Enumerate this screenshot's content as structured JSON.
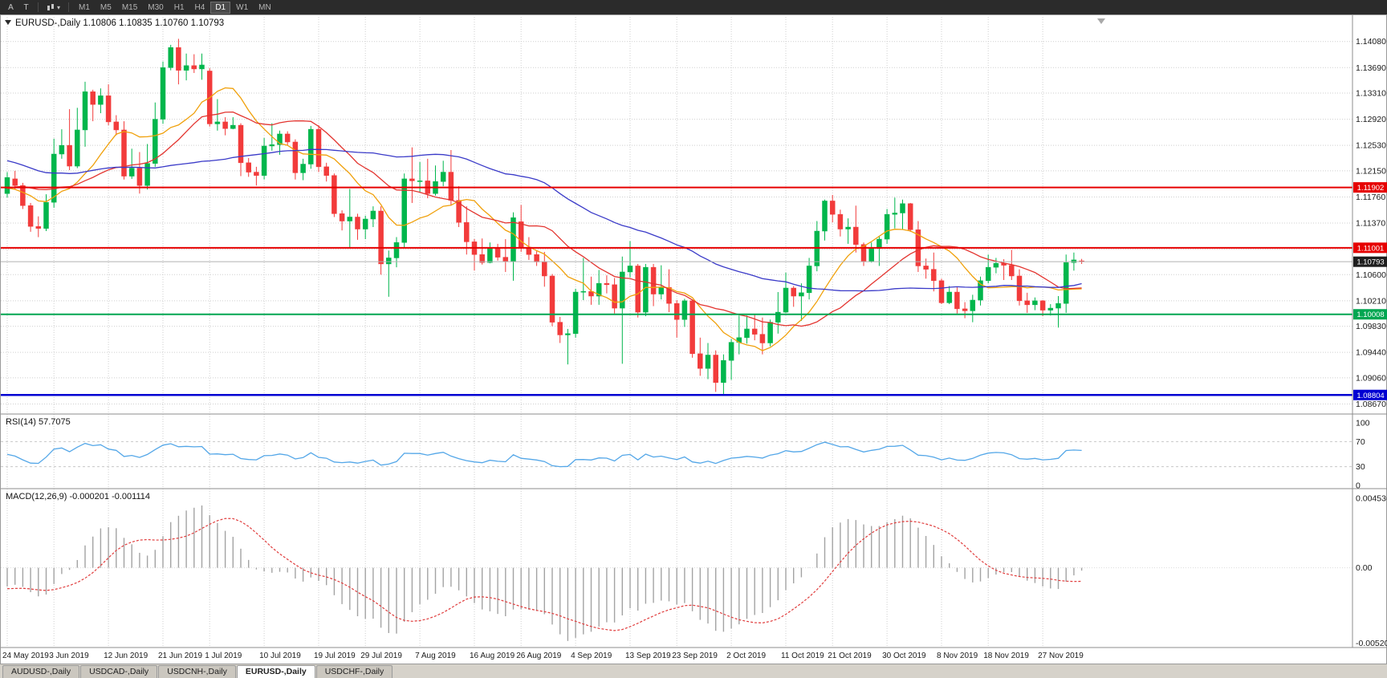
{
  "toolbar": {
    "left_buttons": [
      {
        "label": "A"
      },
      {
        "label": "T"
      }
    ],
    "chart_type_caret": "▾",
    "timeframes": [
      "M1",
      "M5",
      "M15",
      "M30",
      "H1",
      "H4",
      "D1",
      "W1",
      "MN"
    ],
    "active_timeframe": "D1"
  },
  "colors": {
    "background": "#FFFFFF",
    "grid": "#CFCFCF",
    "candle_up": "#00B64C",
    "candle_down": "#F23B3B",
    "resistance_red": "#E60000",
    "support_green": "#00A651",
    "support_blue": "#0000D2",
    "macd_histogram": "#A3A3A3",
    "macd_signal": "#E03C3C"
  },
  "chart_data": {
    "type": "candlestick",
    "title": "EURUSD-,Daily",
    "quote": "1.10806 1.10835 1.10760 1.10793",
    "y_ticks": [
      "1.14080",
      "1.13690",
      "1.13310",
      "1.12920",
      "1.12530",
      "1.12150",
      "1.11760",
      "1.11370",
      "1.10980",
      "1.10600",
      "1.10210",
      "1.09830",
      "1.09440",
      "1.09060",
      "1.08670"
    ],
    "x_axis": [
      {
        "label": "24 May 2019",
        "index": 0
      },
      {
        "label": "3 Jun 2019",
        "index": 6
      },
      {
        "label": "12 Jun 2019",
        "index": 13
      },
      {
        "label": "21 Jun 2019",
        "index": 20
      },
      {
        "label": "1 Jul 2019",
        "index": 26
      },
      {
        "label": "10 Jul 2019",
        "index": 33
      },
      {
        "label": "19 Jul 2019",
        "index": 40
      },
      {
        "label": "29 Jul 2019",
        "index": 46
      },
      {
        "label": "7 Aug 2019",
        "index": 53
      },
      {
        "label": "16 Aug 2019",
        "index": 60
      },
      {
        "label": "26 Aug 2019",
        "index": 66
      },
      {
        "label": "4 Sep 2019",
        "index": 73
      },
      {
        "label": "13 Sep 2019",
        "index": 80
      },
      {
        "label": "23 Sep 2019",
        "index": 86
      },
      {
        "label": "2 Oct 2019",
        "index": 93
      },
      {
        "label": "11 Oct 2019",
        "index": 100
      },
      {
        "label": "21 Oct 2019",
        "index": 106
      },
      {
        "label": "30 Oct 2019",
        "index": 113
      },
      {
        "label": "8 Nov 2019",
        "index": 120
      },
      {
        "label": "18 Nov 2019",
        "index": 126
      },
      {
        "label": "27 Nov 2019",
        "index": 133
      }
    ],
    "preroll_closes": [
      1.1325,
      1.1336,
      1.1354,
      1.1343,
      1.1339,
      1.1305,
      1.1266,
      1.1254,
      1.1262,
      1.1246,
      1.122,
      1.1213,
      1.1224,
      1.1211,
      1.1226,
      1.1223,
      1.1194,
      1.1216,
      1.1253,
      1.1302,
      1.1285,
      1.13,
      1.1291,
      1.1306,
      1.1296,
      1.1279,
      1.1245,
      1.1232,
      1.1211,
      1.1155,
      1.1152,
      1.1138,
      1.1145,
      1.1177,
      1.1176,
      1.1175,
      1.1218,
      1.1198,
      1.1211,
      1.1204,
      1.1224,
      1.1216,
      1.1207,
      1.1184,
      1.1205,
      1.1179,
      1.1171,
      1.1168,
      1.1181,
      1.118
    ],
    "candles": [
      [
        1.1181,
        1.1213,
        1.1175,
        1.1205
      ],
      [
        1.1203,
        1.1215,
        1.1187,
        1.1193
      ],
      [
        1.1193,
        1.1197,
        1.1158,
        1.1163
      ],
      [
        1.1163,
        1.1167,
        1.1124,
        1.1132
      ],
      [
        1.1132,
        1.1147,
        1.1116,
        1.1129
      ],
      [
        1.1129,
        1.118,
        1.1125,
        1.1168
      ],
      [
        1.1168,
        1.1263,
        1.116,
        1.124
      ],
      [
        1.124,
        1.1277,
        1.1233,
        1.1253
      ],
      [
        1.1253,
        1.1307,
        1.1216,
        1.1222
      ],
      [
        1.1222,
        1.1309,
        1.1219,
        1.1276
      ],
      [
        1.1276,
        1.1348,
        1.1251,
        1.1333
      ],
      [
        1.1333,
        1.1336,
        1.1289,
        1.1314
      ],
      [
        1.1314,
        1.1338,
        1.1301,
        1.1327
      ],
      [
        1.1327,
        1.1344,
        1.1283,
        1.1288
      ],
      [
        1.1288,
        1.1298,
        1.1268,
        1.1276
      ],
      [
        1.1276,
        1.1289,
        1.1202,
        1.1207
      ],
      [
        1.1207,
        1.1248,
        1.1203,
        1.1219
      ],
      [
        1.1219,
        1.1243,
        1.1181,
        1.1193
      ],
      [
        1.1193,
        1.1255,
        1.1187,
        1.1226
      ],
      [
        1.1226,
        1.1317,
        1.1221,
        1.1292
      ],
      [
        1.1292,
        1.1378,
        1.1285,
        1.1369
      ],
      [
        1.1369,
        1.1403,
        1.1365,
        1.1399
      ],
      [
        1.1399,
        1.1412,
        1.1344,
        1.1365
      ],
      [
        1.1365,
        1.139,
        1.135,
        1.1372
      ],
      [
        1.1372,
        1.1389,
        1.1361,
        1.1367
      ],
      [
        1.1367,
        1.139,
        1.1351,
        1.1373
      ],
      [
        1.1364,
        1.1368,
        1.1281,
        1.1285
      ],
      [
        1.1285,
        1.1322,
        1.1275,
        1.1288
      ],
      [
        1.1288,
        1.1295,
        1.1268,
        1.1278
      ],
      [
        1.1278,
        1.1295,
        1.1277,
        1.1283
      ],
      [
        1.1283,
        1.1286,
        1.1207,
        1.1227
      ],
      [
        1.1227,
        1.1234,
        1.1206,
        1.1213
      ],
      [
        1.1213,
        1.1221,
        1.1193,
        1.1208
      ],
      [
        1.1208,
        1.1264,
        1.1202,
        1.1252
      ],
      [
        1.1252,
        1.1286,
        1.1245,
        1.1254
      ],
      [
        1.1254,
        1.1275,
        1.1239,
        1.127
      ],
      [
        1.127,
        1.1274,
        1.1253,
        1.1258
      ],
      [
        1.1258,
        1.1262,
        1.1202,
        1.1212
      ],
      [
        1.1212,
        1.1233,
        1.1201,
        1.1225
      ],
      [
        1.1225,
        1.1282,
        1.1218,
        1.1277
      ],
      [
        1.1277,
        1.1283,
        1.1213,
        1.1221
      ],
      [
        1.1221,
        1.1227,
        1.1199,
        1.1208
      ],
      [
        1.1208,
        1.1211,
        1.1146,
        1.1151
      ],
      [
        1.1151,
        1.1156,
        1.1126,
        1.114
      ],
      [
        1.114,
        1.1188,
        1.1101,
        1.1146
      ],
      [
        1.1146,
        1.1151,
        1.1112,
        1.1128
      ],
      [
        1.1128,
        1.1148,
        1.1113,
        1.1143
      ],
      [
        1.1143,
        1.1162,
        1.1131,
        1.1155
      ],
      [
        1.1155,
        1.1162,
        1.106,
        1.1076
      ],
      [
        1.1076,
        1.1096,
        1.1027,
        1.1085
      ],
      [
        1.1085,
        1.1116,
        1.1071,
        1.1108
      ],
      [
        1.1108,
        1.1211,
        1.1101,
        1.1203
      ],
      [
        1.1203,
        1.125,
        1.1167,
        1.12
      ],
      [
        1.12,
        1.1228,
        1.1183,
        1.12
      ],
      [
        1.12,
        1.1233,
        1.1174,
        1.1181
      ],
      [
        1.1181,
        1.1223,
        1.1178,
        1.1199
      ],
      [
        1.1199,
        1.123,
        1.1192,
        1.1213
      ],
      [
        1.1213,
        1.1246,
        1.1163,
        1.1171
      ],
      [
        1.1171,
        1.1192,
        1.1131,
        1.1138
      ],
      [
        1.1138,
        1.1162,
        1.109,
        1.1109
      ],
      [
        1.1109,
        1.1113,
        1.1066,
        1.109
      ],
      [
        1.109,
        1.1114,
        1.1075,
        1.1078
      ],
      [
        1.1078,
        1.1108,
        1.1077,
        1.11
      ],
      [
        1.11,
        1.1106,
        1.1081,
        1.1086
      ],
      [
        1.1086,
        1.1113,
        1.1064,
        1.108
      ],
      [
        1.108,
        1.1153,
        1.1051,
        1.1145
      ],
      [
        1.1139,
        1.1164,
        1.1094,
        1.1101
      ],
      [
        1.1101,
        1.1116,
        1.1082,
        1.109
      ],
      [
        1.109,
        1.1095,
        1.1073,
        1.1079
      ],
      [
        1.1079,
        1.1094,
        1.1042,
        1.1058
      ],
      [
        1.1058,
        1.1061,
        1.0983,
        1.0989
      ],
      [
        1.0989,
        1.0997,
        1.0958,
        1.097
      ],
      [
        1.097,
        1.0979,
        1.0926,
        1.0972
      ],
      [
        1.0972,
        1.1039,
        1.0966,
        1.1034
      ],
      [
        1.1034,
        1.1085,
        1.1022,
        1.1035
      ],
      [
        1.1035,
        1.1057,
        1.1015,
        1.1028
      ],
      [
        1.1028,
        1.1067,
        1.1015,
        1.1047
      ],
      [
        1.1047,
        1.1059,
        1.1032,
        1.1045
      ],
      [
        1.1045,
        1.1055,
        1.1002,
        1.101
      ],
      [
        1.101,
        1.1087,
        1.0927,
        1.1064
      ],
      [
        1.1064,
        1.111,
        1.1056,
        1.1073
      ],
      [
        1.1073,
        1.1076,
        1.0996,
        1.1004
      ],
      [
        1.1004,
        1.1076,
        1.0998,
        1.1071
      ],
      [
        1.1071,
        1.1076,
        1.1013,
        1.1031
      ],
      [
        1.1031,
        1.1074,
        1.1023,
        1.1041
      ],
      [
        1.1041,
        1.1068,
        1.1004,
        1.1017
      ],
      [
        1.1017,
        1.1022,
        1.0966,
        1.0993
      ],
      [
        1.0993,
        1.1024,
        1.0982,
        1.1021
      ],
      [
        1.1021,
        1.1023,
        1.0936,
        1.0942
      ],
      [
        1.0942,
        1.0966,
        1.0909,
        1.092
      ],
      [
        1.092,
        1.0958,
        1.0904,
        1.094
      ],
      [
        1.094,
        1.0947,
        1.0885,
        1.0899
      ],
      [
        1.0899,
        1.0941,
        1.0879,
        1.0932
      ],
      [
        1.0932,
        1.0964,
        1.0903,
        1.0959
      ],
      [
        1.0959,
        1.0999,
        1.0941,
        1.0966
      ],
      [
        1.0966,
        1.0999,
        1.0957,
        1.0979
      ],
      [
        1.0979,
        1.1,
        1.0962,
        1.0971
      ],
      [
        1.0971,
        1.0996,
        1.0941,
        1.0958
      ],
      [
        1.0958,
        1.0993,
        1.0953,
        1.0989
      ],
      [
        1.0989,
        1.1034,
        1.0972,
        1.1004
      ],
      [
        1.1004,
        1.1063,
        1.1003,
        1.104
      ],
      [
        1.104,
        1.1043,
        1.1012,
        1.1028
      ],
      [
        1.1028,
        1.1047,
        1.0991,
        1.1033
      ],
      [
        1.1033,
        1.1085,
        1.1023,
        1.1073
      ],
      [
        1.1073,
        1.114,
        1.1065,
        1.1125
      ],
      [
        1.1125,
        1.1172,
        1.1111,
        1.117
      ],
      [
        1.117,
        1.1179,
        1.1138,
        1.115
      ],
      [
        1.115,
        1.1157,
        1.1117,
        1.1128
      ],
      [
        1.1128,
        1.1144,
        1.1106,
        1.1131
      ],
      [
        1.1131,
        1.1163,
        1.1093,
        1.1105
      ],
      [
        1.1105,
        1.1108,
        1.1073,
        1.108
      ],
      [
        1.108,
        1.1108,
        1.1078,
        1.1099
      ],
      [
        1.1099,
        1.1118,
        1.1073,
        1.1113
      ],
      [
        1.1113,
        1.1158,
        1.1106,
        1.115
      ],
      [
        1.115,
        1.1175,
        1.1129,
        1.1152
      ],
      [
        1.1152,
        1.1172,
        1.1128,
        1.1166
      ],
      [
        1.1166,
        1.1167,
        1.1124,
        1.1127
      ],
      [
        1.1127,
        1.114,
        1.1064,
        1.1073
      ],
      [
        1.1073,
        1.1084,
        1.1054,
        1.1068
      ],
      [
        1.1068,
        1.1093,
        1.1035,
        1.1051
      ],
      [
        1.1051,
        1.1054,
        1.1016,
        1.1018
      ],
      [
        1.1018,
        1.1043,
        1.1016,
        1.1034
      ],
      [
        1.1034,
        1.1041,
        1.1002,
        1.1009
      ],
      [
        1.1009,
        1.1019,
        1.0995,
        1.1006
      ],
      [
        1.1006,
        1.103,
        1.0989,
        1.1022
      ],
      [
        1.1022,
        1.1057,
        1.1014,
        1.1051
      ],
      [
        1.1051,
        1.109,
        1.1047,
        1.1071
      ],
      [
        1.1071,
        1.1085,
        1.1062,
        1.1077
      ],
      [
        1.1077,
        1.1083,
        1.1052,
        1.1074
      ],
      [
        1.1074,
        1.1097,
        1.1052,
        1.1058
      ],
      [
        1.1058,
        1.1068,
        1.1014,
        1.1021
      ],
      [
        1.1021,
        1.1033,
        1.1003,
        1.1015
      ],
      [
        1.1015,
        1.1026,
        1.1007,
        1.1021
      ],
      [
        1.1021,
        1.1022,
        1.0998,
        1.1007
      ],
      [
        1.1007,
        1.1016,
        1.0999,
        1.101
      ],
      [
        1.101,
        1.1028,
        1.0981,
        1.1017
      ],
      [
        1.1017,
        1.109,
        1.1003,
        1.1078
      ],
      [
        1.1078,
        1.1093,
        1.1066,
        1.1082
      ],
      [
        1.10806,
        1.10835,
        1.1076,
        1.10793
      ]
    ],
    "overlays": {
      "mas": [
        {
          "period": 10,
          "color": "#F0A00A"
        },
        {
          "period": 20,
          "color": "#E3342F"
        },
        {
          "period": 50,
          "color": "#3A3AC8"
        }
      ],
      "hlines": [
        {
          "price": 1.11902,
          "label": "1.11902",
          "color": "#E60000",
          "width": 2
        },
        {
          "price": 1.11001,
          "label": "1.11001",
          "color": "#E60000",
          "width": 2
        },
        {
          "price": 1.10008,
          "label": "1.10008",
          "color": "#00A651",
          "width": 2
        },
        {
          "price": 1.08804,
          "label": "1.08804",
          "color": "#0000D2",
          "width": 2.5
        }
      ],
      "current_price": {
        "value": 1.10793,
        "label": "1.10793",
        "line_color": "#B0B0B0",
        "tag_color": "#1E1E1E"
      }
    },
    "rsi": {
      "label": "RSI(14) 57.7075",
      "period": 14,
      "color": "#54A7E8",
      "levels": [
        {
          "label": "100",
          "value": 100,
          "dashed": false
        },
        {
          "label": "70",
          "value": 70,
          "dashed": true
        },
        {
          "label": "30",
          "value": 30,
          "dashed": true
        },
        {
          "label": "0",
          "value": 0,
          "dashed": false
        }
      ]
    },
    "macd": {
      "label": "MACD(12,26,9) -0.000201 -0.001114",
      "fast": 12,
      "slow": 26,
      "signal_period": 9,
      "axis": [
        {
          "label": "0.004536",
          "value": 0.004536
        },
        {
          "label": "0.00",
          "value": 0
        },
        {
          "label": "-0.005205",
          "value": -0.005205
        }
      ]
    }
  },
  "bottom_tabs": {
    "tabs": [
      "AUDUSD-,Daily",
      "USDCAD-,Daily",
      "USDCNH-,Daily",
      "EURUSD-,Daily",
      "USDCHF-,Daily"
    ],
    "active": "EURUSD-,Daily"
  }
}
